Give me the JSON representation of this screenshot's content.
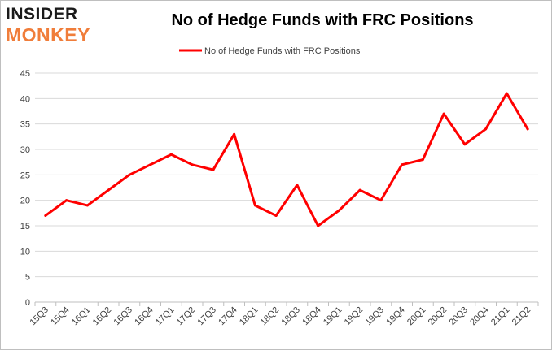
{
  "logo": {
    "line1": "INSIDER",
    "line2": "MONKEY",
    "colors": {
      "line1": "#1a1a1a",
      "line2": "#f07d3a"
    }
  },
  "chart_data": {
    "type": "line",
    "title": "No of Hedge Funds with FRC Positions",
    "xlabel": "",
    "ylabel": "",
    "categories": [
      "15Q3",
      "15Q4",
      "16Q1",
      "16Q2",
      "16Q3",
      "16Q4",
      "17Q1",
      "17Q2",
      "17Q3",
      "17Q4",
      "18Q1",
      "18Q2",
      "18Q3",
      "18Q4",
      "19Q1",
      "19Q2",
      "19Q3",
      "19Q4",
      "20Q1",
      "20Q2",
      "20Q3",
      "20Q4",
      "21Q1",
      "21Q2"
    ],
    "series": [
      {
        "name": "No of Hedge Funds with FRC Positions",
        "color": "#ff0000",
        "values": [
          17,
          20,
          19,
          22,
          25,
          27,
          29,
          27,
          26,
          33,
          19,
          17,
          23,
          15,
          18,
          22,
          20,
          27,
          28,
          37,
          31,
          34,
          41,
          34
        ]
      }
    ],
    "ylim": [
      0,
      45
    ],
    "yticks": [
      0,
      5,
      10,
      15,
      20,
      25,
      30,
      35,
      40,
      45
    ],
    "grid": true,
    "legend": "top-center"
  }
}
